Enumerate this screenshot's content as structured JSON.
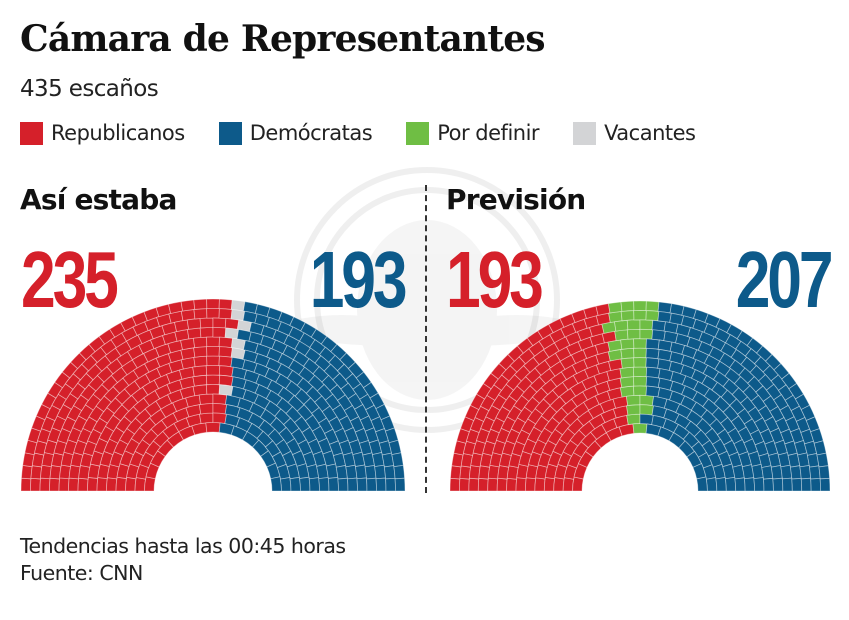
{
  "title": "Cámara de Representantes",
  "subtitle": "435 escaños",
  "legend": [
    {
      "label": "Republicanos",
      "color": "#d5202a",
      "key": "rep"
    },
    {
      "label": "Demócratas",
      "color": "#0d5a8a",
      "key": "dem"
    },
    {
      "label": "Por definir",
      "color": "#6fbe44",
      "key": "tbd"
    },
    {
      "label": "Vacantes",
      "color": "#d3d4d6",
      "key": "vac"
    }
  ],
  "footer": {
    "note": "Tendencias hasta las 00:45 horas",
    "source": "Fuente: CNN"
  },
  "chart_data": [
    {
      "type": "parliament",
      "title": "Así estaba",
      "total_seats": 435,
      "left_number": "235",
      "right_number": "193",
      "series": [
        {
          "name": "Republicanos",
          "key": "rep",
          "value": 235
        },
        {
          "name": "Vacantes",
          "key": "vac",
          "value": 7
        },
        {
          "name": "Demócratas",
          "key": "dem",
          "value": 193
        }
      ]
    },
    {
      "type": "parliament",
      "title": "Previsión",
      "total_seats": 435,
      "left_number": "193",
      "right_number": "207",
      "series": [
        {
          "name": "Republicanos",
          "key": "rep",
          "value": 193
        },
        {
          "name": "Por definir",
          "key": "tbd",
          "value": 35
        },
        {
          "name": "Demócratas",
          "key": "dem",
          "value": 207
        }
      ]
    }
  ]
}
